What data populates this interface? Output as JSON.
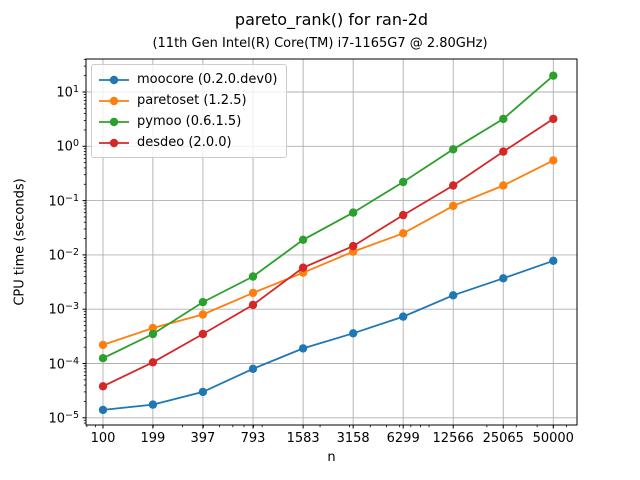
{
  "chart_data": {
    "type": "line",
    "title": "pareto_rank() for ran-2d",
    "subtitle": "(11th Gen Intel(R) Core(TM) i7-1165G7 @ 2.80GHz)",
    "xlabel": "n",
    "ylabel": "CPU time (seconds)",
    "xscale": "log",
    "yscale": "log",
    "grid": true,
    "grid_color": "#b0b0b0",
    "spine_color": "#000000",
    "legend_position": "upper left",
    "xlim": [
      79,
      69000
    ],
    "ylim": [
      7e-06,
      40
    ],
    "x": [
      100,
      199,
      397,
      793,
      1583,
      3158,
      6299,
      12566,
      25065,
      50000
    ],
    "xtick_labels": [
      "100",
      "199",
      "397",
      "793",
      "1583",
      "3158",
      "6299",
      "12566",
      "25065",
      "50000"
    ],
    "ytick_exponents": [
      1,
      0,
      -1,
      -2,
      -3,
      -4,
      -5
    ],
    "series": [
      {
        "name": "moocore (0.2.0.dev0)",
        "color": "#1f77b4",
        "values": [
          1.4e-05,
          1.75e-05,
          3e-05,
          8e-05,
          0.00019,
          0.00036,
          0.00073,
          0.0018,
          0.0037,
          0.0078
        ]
      },
      {
        "name": "paretoset (1.2.5)",
        "color": "#ff7f0e",
        "values": [
          0.00022,
          0.00045,
          0.0008,
          0.002,
          0.0047,
          0.0115,
          0.025,
          0.08,
          0.19,
          0.55
        ]
      },
      {
        "name": "pymoo (0.6.1.5)",
        "color": "#2ca02c",
        "values": [
          0.000125,
          0.00035,
          0.00135,
          0.004,
          0.019,
          0.06,
          0.22,
          0.88,
          3.2,
          20
        ]
      },
      {
        "name": "desdeo (2.0.0)",
        "color": "#d62728",
        "values": [
          3.8e-05,
          0.000105,
          0.00035,
          0.0012,
          0.0058,
          0.0145,
          0.054,
          0.19,
          0.8,
          3.2
        ]
      }
    ]
  }
}
